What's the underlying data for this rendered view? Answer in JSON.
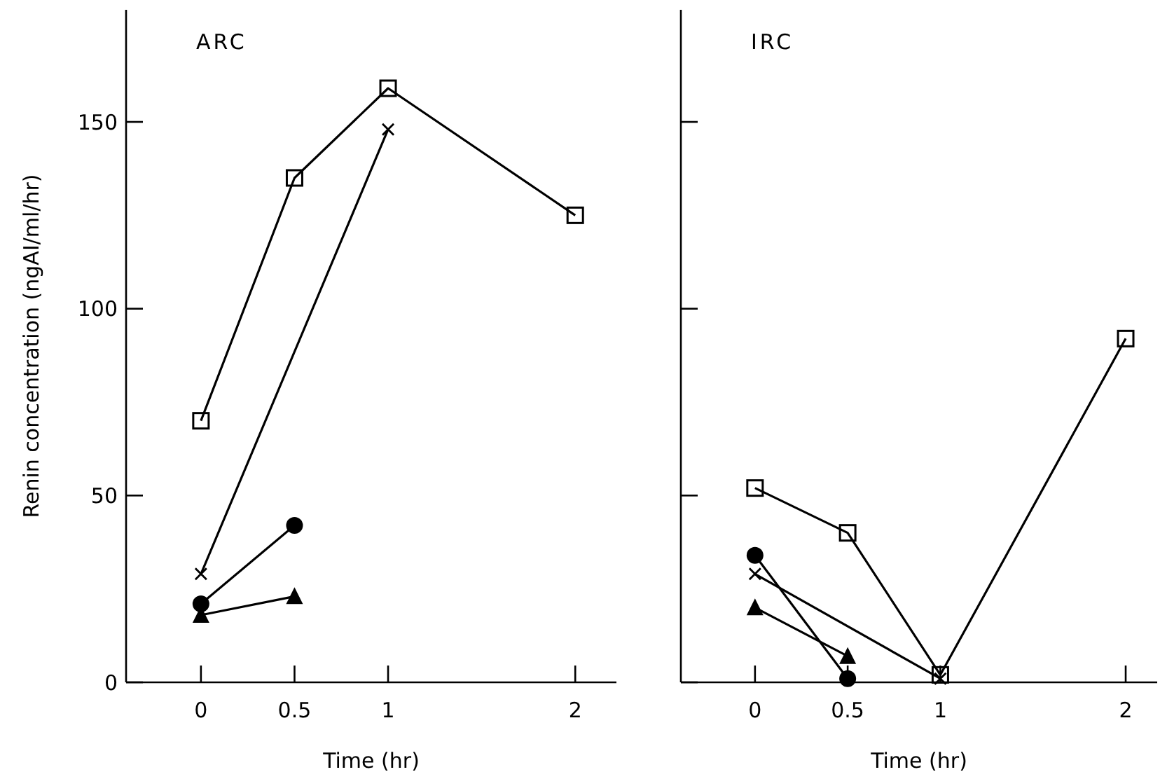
{
  "chart_data": [
    {
      "type": "line",
      "title": "ARC",
      "xlabel": "Time (hr)",
      "ylabel": "Renin concentration (ngAI/ml/hr)",
      "xlim": [
        -0.4,
        2.22
      ],
      "xticks": [
        0,
        0.5,
        1,
        2
      ],
      "ylim": [
        0,
        180
      ],
      "yticks": [
        0,
        50,
        100,
        150
      ],
      "grid": false,
      "line_style": "solid",
      "series": [
        {
          "color": "#000000",
          "marker": "square",
          "x": [
            0,
            0.5,
            1,
            2
          ],
          "values": [
            70,
            135,
            159,
            125
          ]
        },
        {
          "color": "#000000",
          "marker": "cross",
          "x": [
            0,
            1
          ],
          "values": [
            29,
            148
          ]
        },
        {
          "color": "#000000",
          "marker": "circle",
          "x": [
            0,
            0.5
          ],
          "values": [
            21,
            42
          ]
        },
        {
          "color": "#000000",
          "marker": "triangle",
          "x": [
            0,
            0.5
          ],
          "values": [
            18,
            23
          ]
        }
      ]
    },
    {
      "type": "line",
      "title": "IRC",
      "xlabel": "Time (hr)",
      "xlim": [
        -0.4,
        2.17
      ],
      "xticks": [
        0,
        0.5,
        1,
        2
      ],
      "ylim": [
        0,
        180
      ],
      "yticks": [
        0,
        50,
        100,
        150
      ],
      "tick_labels": "x",
      "grid": false,
      "line_style": "solid",
      "series": [
        {
          "color": "#000000",
          "marker": "square",
          "x": [
            0,
            0.5,
            1,
            2
          ],
          "values": [
            52,
            40,
            2,
            92
          ]
        },
        {
          "color": "#000000",
          "marker": "cross",
          "x": [
            0,
            1
          ],
          "values": [
            29,
            1
          ]
        },
        {
          "color": "#000000",
          "marker": "circle",
          "x": [
            0,
            0.5
          ],
          "values": [
            34,
            1
          ]
        },
        {
          "color": "#000000",
          "marker": "triangle",
          "x": [
            0,
            0.5
          ],
          "values": [
            20,
            7
          ]
        }
      ]
    }
  ]
}
